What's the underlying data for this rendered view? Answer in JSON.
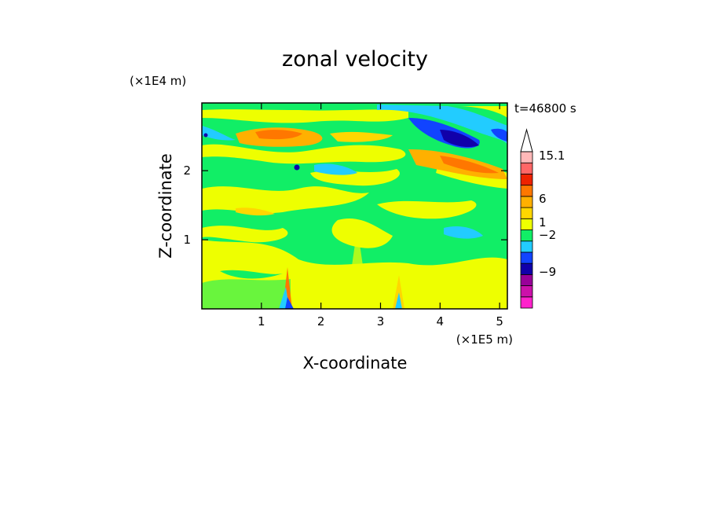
{
  "chart_data": {
    "type": "heatmap",
    "title": "zonal velocity",
    "xlabel": "X-coordinate",
    "ylabel": "Z-coordinate",
    "x_unit": "(×1E5 m)",
    "y_unit": "(×1E4 m)",
    "time_label": "t=46800 s",
    "xlim": [
      0,
      5.13
    ],
    "ylim": [
      0,
      2.98
    ],
    "x_ticks": [
      "1",
      "2",
      "3",
      "4",
      "5"
    ],
    "y_ticks": [
      "1",
      "2"
    ],
    "colorbar": {
      "labels": [
        "15.1",
        "6",
        "1",
        "−2",
        "−9"
      ],
      "bands": [
        {
          "color": "#ff22cc"
        },
        {
          "color": "#cc11aa"
        },
        {
          "color": "#990099"
        },
        {
          "color": "#1100aa"
        },
        {
          "color": "#1144ff"
        },
        {
          "color": "#22ccff"
        },
        {
          "color": "#11ee66"
        },
        {
          "color": "#eeff00"
        },
        {
          "color": "#ffd700"
        },
        {
          "color": "#ffb000"
        },
        {
          "color": "#ff7700"
        },
        {
          "color": "#ee2200"
        },
        {
          "color": "#ff6666"
        },
        {
          "color": "#ffb8b8"
        }
      ]
    }
  }
}
